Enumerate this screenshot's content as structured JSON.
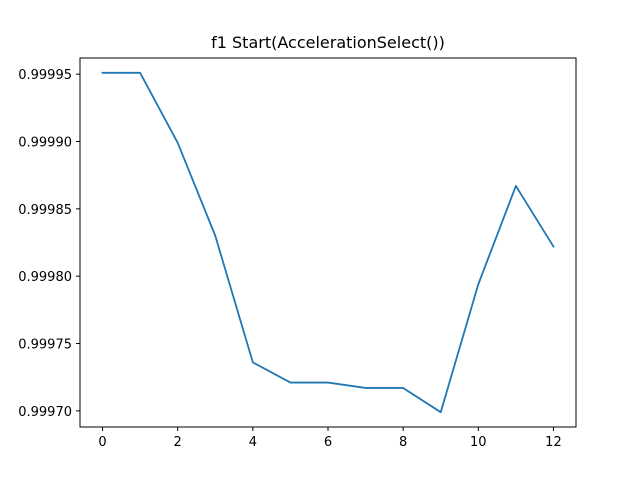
{
  "chart_data": {
    "type": "line",
    "title": "f1 Start(AccelerationSelect())",
    "xlabel": "",
    "ylabel": "",
    "x": [
      0,
      1,
      2,
      3,
      4,
      5,
      6,
      7,
      8,
      9,
      10,
      11,
      12
    ],
    "series": [
      {
        "values": [
          0.999951,
          0.999951,
          0.999899,
          0.99983,
          0.999736,
          0.999721,
          0.999721,
          0.999717,
          0.999717,
          0.999699,
          0.999794,
          0.999867,
          0.999822
        ],
        "color": "#1f77b4"
      }
    ],
    "xlim": [
      -0.6,
      12.6
    ],
    "ylim": [
      0.999688,
      0.999962
    ],
    "xticks": [
      0,
      2,
      4,
      6,
      8,
      10,
      12
    ],
    "xtick_labels": [
      "0",
      "2",
      "4",
      "6",
      "8",
      "10",
      "12"
    ],
    "yticks": [
      0.9997,
      0.99975,
      0.9998,
      0.99985,
      0.9999,
      0.99995
    ],
    "ytick_labels": [
      "0.99970",
      "0.99975",
      "0.99980",
      "0.99985",
      "0.99990",
      "0.99995"
    ],
    "grid": false,
    "legend": false
  }
}
